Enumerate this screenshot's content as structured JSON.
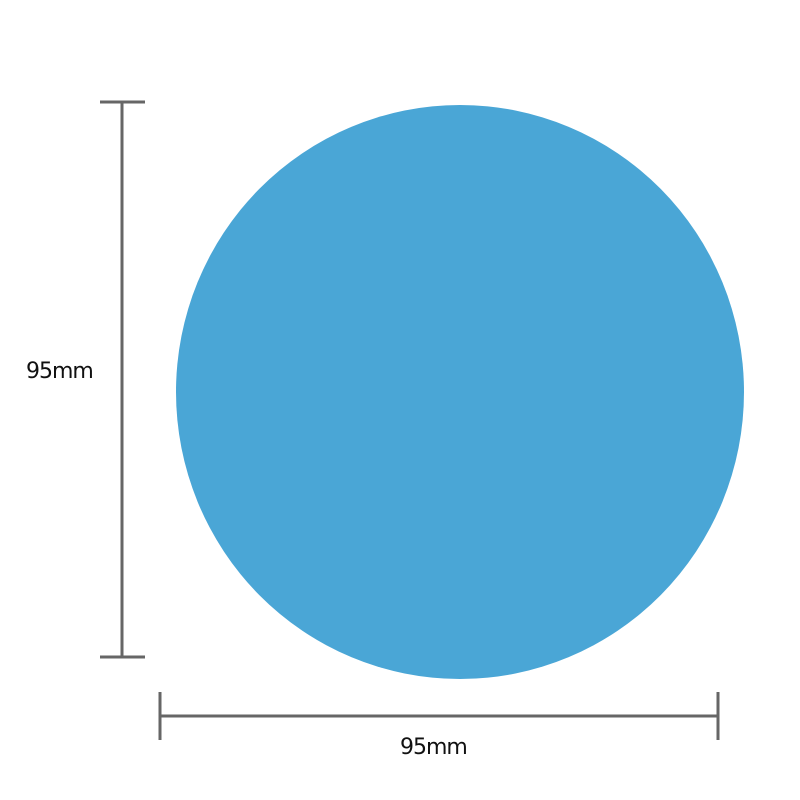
{
  "diagram": {
    "shape": "circle",
    "fill_color": "#4aa6d6",
    "dimension_line_color": "#666666",
    "height_label": "95mm",
    "width_label": "95mm"
  }
}
